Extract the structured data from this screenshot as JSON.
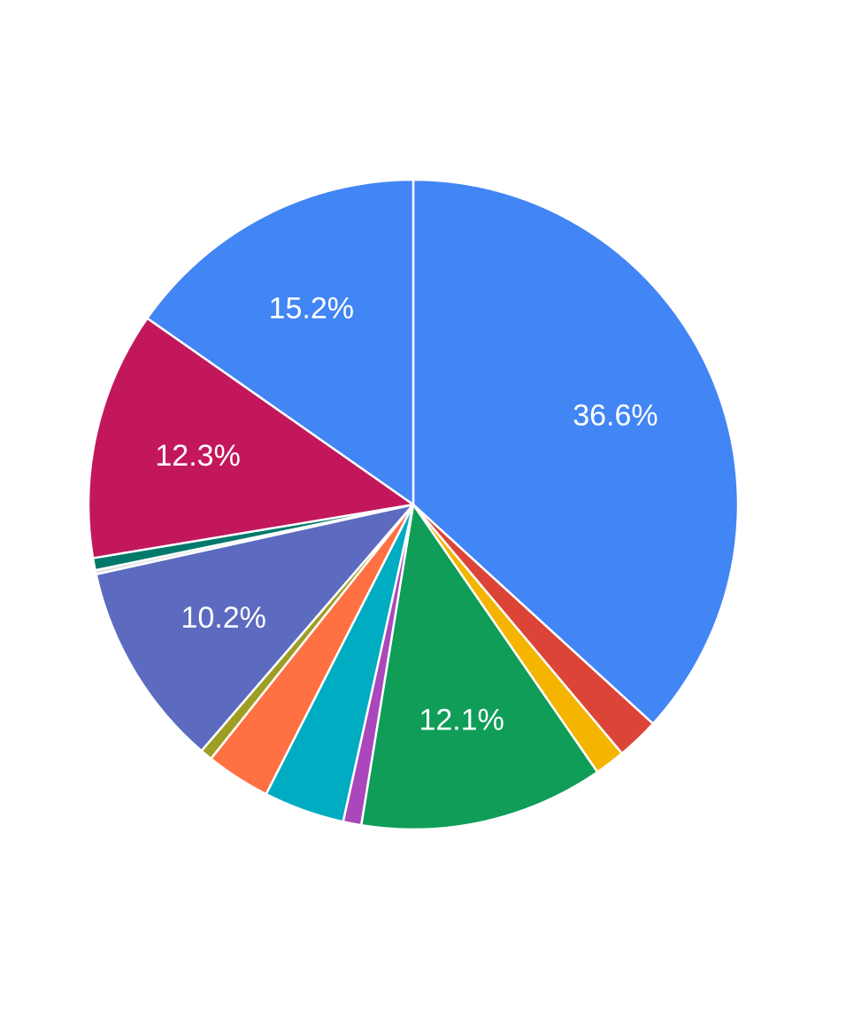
{
  "chart_data": {
    "type": "pie",
    "start_angle_deg": 0,
    "direction": "clockwise",
    "slices": [
      {
        "value": 36.6,
        "label": "36.6%",
        "color": "#4285F4"
      },
      {
        "value": 2.1,
        "label": "",
        "color": "#DB4437"
      },
      {
        "value": 1.5,
        "label": "",
        "color": "#F4B400"
      },
      {
        "value": 12.1,
        "label": "12.1%",
        "color": "#0F9D58"
      },
      {
        "value": 0.9,
        "label": "",
        "color": "#AB47BC"
      },
      {
        "value": 4.0,
        "label": "",
        "color": "#00ACC1"
      },
      {
        "value": 3.2,
        "label": "",
        "color": "#FF7043"
      },
      {
        "value": 0.6,
        "label": "",
        "color": "#9E9D24"
      },
      {
        "value": 10.2,
        "label": "10.2%",
        "color": "#5C6BC0"
      },
      {
        "value": 0.2,
        "label": "",
        "color": "#E0E0E0"
      },
      {
        "value": 0.6,
        "label": "",
        "color": "#00796B"
      },
      {
        "value": 12.3,
        "label": "12.3%",
        "color": "#C2185B"
      },
      {
        "value": 15.2,
        "label": "15.2%",
        "color": "#4285F4"
      }
    ]
  }
}
